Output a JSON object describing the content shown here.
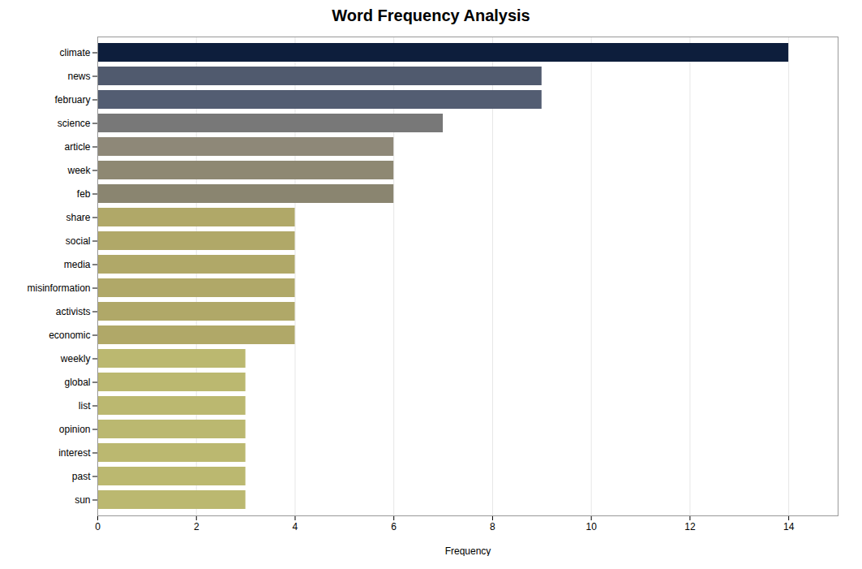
{
  "chart_data": {
    "type": "bar",
    "orientation": "horizontal",
    "title": "Word Frequency Analysis",
    "xlabel": "Frequency",
    "categories": [
      "climate",
      "news",
      "february",
      "science",
      "article",
      "week",
      "feb",
      "share",
      "social",
      "media",
      "misinformation",
      "activists",
      "economic",
      "weekly",
      "global",
      "list",
      "opinion",
      "interest",
      "past",
      "sun"
    ],
    "values": [
      14,
      9,
      9,
      7,
      6,
      6,
      6,
      4,
      4,
      4,
      4,
      4,
      4,
      3,
      3,
      3,
      3,
      3,
      3,
      3
    ],
    "colors": [
      "#0d1e3c",
      "#505a6e",
      "#535d72",
      "#787878",
      "#8e8878",
      "#8e8872",
      "#8a8570",
      "#b0a868",
      "#b0a868",
      "#b0a868",
      "#b0a868",
      "#b0a868",
      "#b0a868",
      "#bbb870",
      "#bbb870",
      "#bbb870",
      "#bbb870",
      "#bbb870",
      "#bbb870",
      "#bbb870"
    ],
    "xlim": [
      0,
      15
    ],
    "xticks": [
      0,
      2,
      4,
      6,
      8,
      10,
      12,
      14
    ],
    "grid": true
  }
}
